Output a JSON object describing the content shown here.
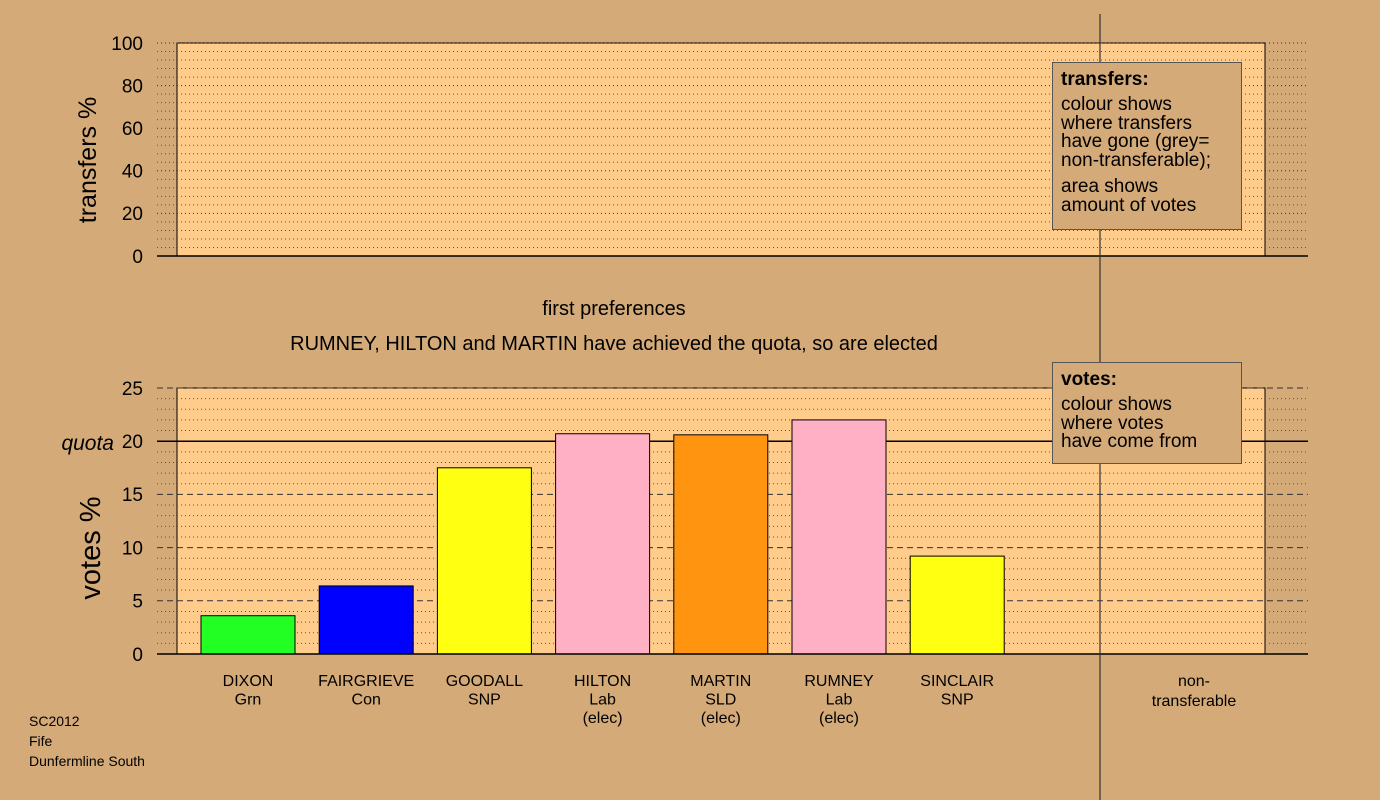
{
  "chart_data": [
    {
      "type": "bar",
      "panel": "transfers",
      "ylabel": "transfers %",
      "ylim": [
        0,
        100
      ],
      "yticks": [
        0,
        20,
        40,
        60,
        80,
        100
      ],
      "categories": [],
      "values": [],
      "grid": true
    },
    {
      "type": "bar",
      "panel": "votes",
      "title": "first preferences",
      "subtitle": "RUMNEY, HILTON and MARTIN have achieved the quota, so are elected",
      "ylabel": "votes %",
      "ylim": [
        0,
        25
      ],
      "yticks": [
        0,
        5,
        10,
        15,
        20,
        25
      ],
      "quota": 20,
      "quota_label": "quota",
      "categories": [
        {
          "name": "DIXON",
          "party": "Grn",
          "status": ""
        },
        {
          "name": "FAIRGRIEVE",
          "party": "Con",
          "status": ""
        },
        {
          "name": "GOODALL",
          "party": "SNP",
          "status": ""
        },
        {
          "name": "HILTON",
          "party": "Lab",
          "status": "(elec)"
        },
        {
          "name": "MARTIN",
          "party": "SLD",
          "status": "(elec)"
        },
        {
          "name": "RUMNEY",
          "party": "Lab",
          "status": "(elec)"
        },
        {
          "name": "SINCLAIR",
          "party": "SNP",
          "status": ""
        }
      ],
      "values": [
        3.6,
        6.4,
        17.5,
        20.7,
        20.6,
        22.0,
        9.2
      ],
      "colors": [
        "#22ff22",
        "#0000ff",
        "#ffff11",
        "#ffb0c4",
        "#ff9410",
        "#ffb0c4",
        "#ffff11"
      ],
      "nontransferable_label": [
        "non-",
        "transferable"
      ],
      "grid": true
    }
  ],
  "legends": {
    "transfers": {
      "title": "transfers:",
      "lines1": [
        "colour shows",
        "where transfers",
        "have gone (grey=",
        "non-transferable);"
      ],
      "lines2": [
        "area shows",
        "amount of votes"
      ]
    },
    "votes": {
      "title": "votes:",
      "lines": [
        "colour shows",
        "where votes",
        "have come from"
      ]
    }
  },
  "footer": {
    "line1": "SC2012",
    "line2": "Fife",
    "line3": "Dunfermline South"
  },
  "colors": {
    "background": "#d4aa78",
    "plot_area": "#ffcc8c"
  }
}
